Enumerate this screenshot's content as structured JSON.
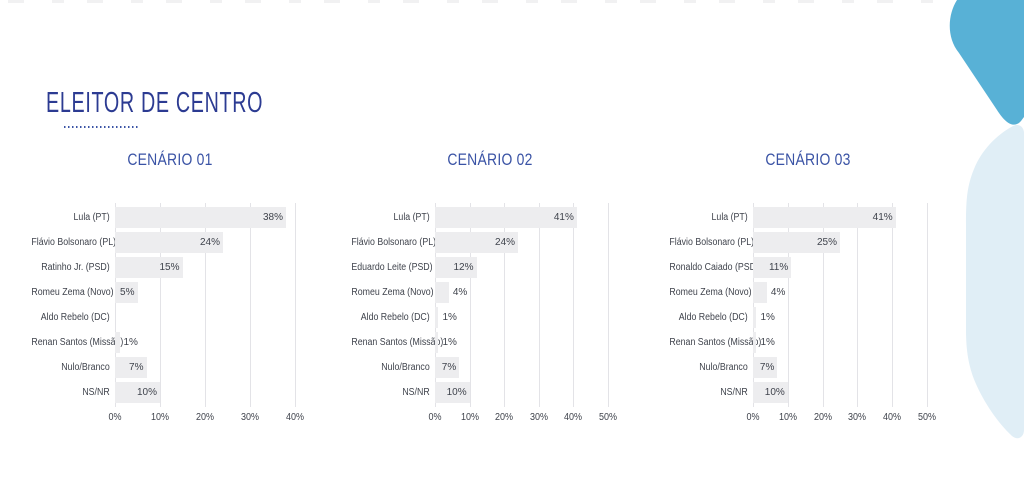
{
  "page": {
    "title": "ELEITOR DE CENTRO",
    "colors": {
      "title": "#2C3B92",
      "header": "#3A53A5",
      "bar": "#EDEDEF",
      "grid": "#E3E3E7",
      "text": "#3F434C",
      "shape_top": "#58B1D6",
      "shape_bottom": "#E0EEF6"
    }
  },
  "chart_data": [
    {
      "type": "bar",
      "orientation": "horizontal",
      "title": "CENÁRIO 01",
      "categories": [
        "Lula (PT)",
        "Flávio Bolsonaro (PL)",
        "Ratinho Jr. (PSD)",
        "Romeu Zema (Novo)",
        "Aldo Rebelo (DC)",
        "Renan Santos (Missão)",
        "Nulo/Branco",
        "NS/NR"
      ],
      "values": [
        38,
        24,
        15,
        5,
        0,
        1,
        7,
        10
      ],
      "value_labels": [
        "38%",
        "24%",
        "15%",
        "5%",
        "",
        "1%",
        "7%",
        "10%"
      ],
      "xlim": [
        0,
        40
      ],
      "ticks": [
        "0%",
        "10%",
        "20%",
        "30%",
        "40%"
      ],
      "grid": true,
      "legend": false
    },
    {
      "type": "bar",
      "orientation": "horizontal",
      "title": "CENÁRIO 02",
      "categories": [
        "Lula (PT)",
        "Flávio Bolsonaro (PL)",
        "Eduardo Leite (PSD)",
        "Romeu Zema (Novo)",
        "Aldo Rebelo (DC)",
        "Renan Santos (Missão)",
        "Nulo/Branco",
        "NS/NR"
      ],
      "values": [
        41,
        24,
        12,
        4,
        1,
        1,
        7,
        10
      ],
      "value_labels": [
        "41%",
        "24%",
        "12%",
        "4%",
        "1%",
        "1%",
        "7%",
        "10%"
      ],
      "xlim": [
        0,
        50
      ],
      "ticks": [
        "0%",
        "10%",
        "20%",
        "30%",
        "40%",
        "50%"
      ],
      "grid": true,
      "legend": false
    },
    {
      "type": "bar",
      "orientation": "horizontal",
      "title": "CENÁRIO 03",
      "categories": [
        "Lula (PT)",
        "Flávio Bolsonaro (PL)",
        "Ronaldo Caiado (PSD)",
        "Romeu Zema (Novo)",
        "Aldo Rebelo (DC)",
        "Renan Santos (Missão)",
        "Nulo/Branco",
        "NS/NR"
      ],
      "values": [
        41,
        25,
        11,
        4,
        1,
        1,
        7,
        10
      ],
      "value_labels": [
        "41%",
        "25%",
        "11%",
        "4%",
        "1%",
        "1%",
        "7%",
        "10%"
      ],
      "xlim": [
        0,
        50
      ],
      "ticks": [
        "0%",
        "10%",
        "20%",
        "30%",
        "40%",
        "50%"
      ],
      "grid": true,
      "legend": false
    }
  ]
}
